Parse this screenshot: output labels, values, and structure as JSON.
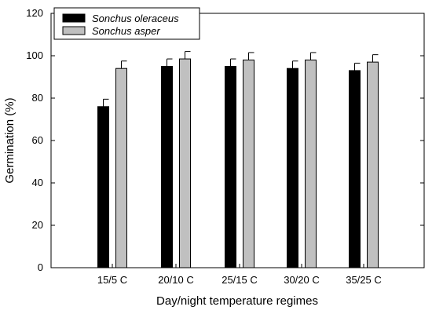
{
  "chart_data": {
    "type": "bar",
    "title": "",
    "xlabel": "Day/night temperature regimes",
    "ylabel": "Germination (%)",
    "categories": [
      "15/5 C",
      "20/10 C",
      "25/15 C",
      "30/20 C",
      "35/25 C"
    ],
    "series": [
      {
        "name": "Sonchus oleraceus",
        "color": "#000000",
        "values": [
          76,
          95,
          95,
          94,
          93
        ],
        "errors": [
          3.5,
          3.5,
          3.5,
          3.5,
          3.5
        ]
      },
      {
        "name": "Sonchus asper",
        "color": "#c0c0c0",
        "values": [
          94,
          98.5,
          98,
          98,
          97
        ],
        "errors": [
          3.5,
          3.5,
          3.5,
          3.5,
          3.5
        ]
      }
    ],
    "yticks": [
      0,
      20,
      40,
      60,
      80,
      100,
      120
    ],
    "ylim": [
      0,
      120
    ],
    "legend": "top-left",
    "grid": false
  }
}
